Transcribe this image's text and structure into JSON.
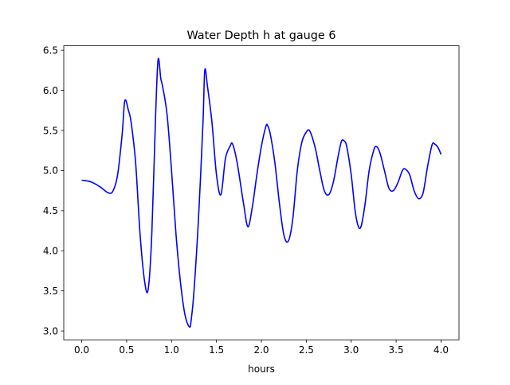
{
  "chart_data": {
    "type": "line",
    "title": "Water Depth h at gauge 6",
    "xlabel": "hours",
    "ylabel": "",
    "xlim": [
      -0.2,
      4.2
    ],
    "ylim": [
      2.89,
      6.555
    ],
    "xticks": [
      0.0,
      0.5,
      1.0,
      1.5,
      2.0,
      2.5,
      3.0,
      3.5,
      4.0
    ],
    "xtick_labels": [
      "0.0",
      "0.5",
      "1.0",
      "1.5",
      "2.0",
      "2.5",
      "3.0",
      "3.5",
      "4.0"
    ],
    "yticks": [
      3.0,
      3.5,
      4.0,
      4.5,
      5.0,
      5.5,
      6.0,
      6.5
    ],
    "ytick_labels": [
      "3.0",
      "3.5",
      "4.0",
      "4.5",
      "5.0",
      "5.5",
      "6.0",
      "6.5"
    ],
    "grid": false,
    "legend": "none",
    "series": [
      {
        "color": "#0000ff",
        "x": [
          0.0,
          0.1,
          0.2,
          0.3,
          0.35,
          0.4,
          0.45,
          0.48,
          0.52,
          0.55,
          0.6,
          0.65,
          0.7,
          0.74,
          0.78,
          0.82,
          0.85,
          0.88,
          0.9,
          0.95,
          1.0,
          1.05,
          1.1,
          1.15,
          1.2,
          1.22,
          1.25,
          1.3,
          1.35,
          1.37,
          1.4,
          1.45,
          1.5,
          1.55,
          1.6,
          1.65,
          1.68,
          1.73,
          1.8,
          1.85,
          1.9,
          1.95,
          2.0,
          2.05,
          2.07,
          2.1,
          2.15,
          2.2,
          2.25,
          2.3,
          2.35,
          2.4,
          2.45,
          2.5,
          2.54,
          2.6,
          2.65,
          2.7,
          2.75,
          2.8,
          2.85,
          2.89,
          2.92,
          2.95,
          3.0,
          3.05,
          3.1,
          3.15,
          3.2,
          3.25,
          3.28,
          3.32,
          3.37,
          3.42,
          3.47,
          3.52,
          3.57,
          3.6,
          3.65,
          3.7,
          3.75,
          3.8,
          3.85,
          3.9,
          3.93,
          3.97,
          4.0
        ],
        "y": [
          4.88,
          4.86,
          4.8,
          4.72,
          4.75,
          4.95,
          5.45,
          5.87,
          5.75,
          5.6,
          5.1,
          4.2,
          3.62,
          3.52,
          4.2,
          5.6,
          6.38,
          6.15,
          6.05,
          5.7,
          5.0,
          4.2,
          3.6,
          3.2,
          3.05,
          3.15,
          3.5,
          4.4,
          5.6,
          6.25,
          6.05,
          5.6,
          4.95,
          4.7,
          5.15,
          5.3,
          5.33,
          5.1,
          4.6,
          4.3,
          4.55,
          4.95,
          5.3,
          5.55,
          5.56,
          5.45,
          5.1,
          4.6,
          4.2,
          4.12,
          4.4,
          5.0,
          5.35,
          5.48,
          5.49,
          5.28,
          5.0,
          4.75,
          4.7,
          4.85,
          5.15,
          5.36,
          5.37,
          5.3,
          4.95,
          4.45,
          4.28,
          4.55,
          5.0,
          5.25,
          5.3,
          5.22,
          5.0,
          4.78,
          4.75,
          4.85,
          5.0,
          5.02,
          4.95,
          4.75,
          4.65,
          4.72,
          5.05,
          5.32,
          5.33,
          5.28,
          5.2
        ]
      }
    ]
  }
}
